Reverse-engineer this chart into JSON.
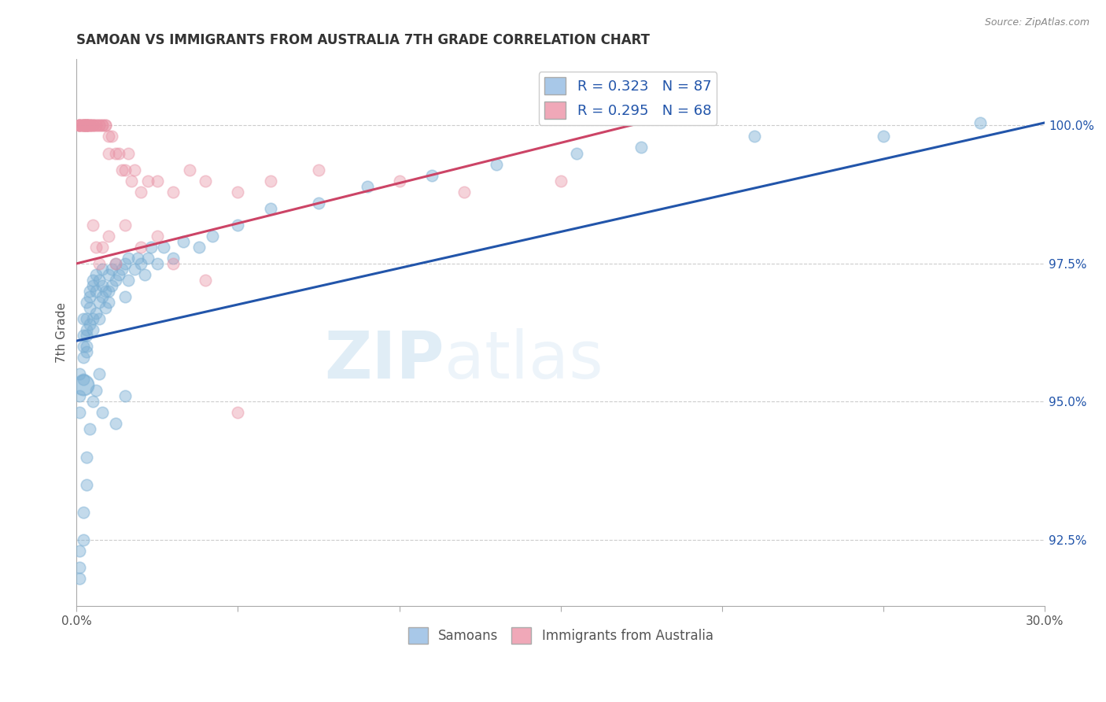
{
  "title": "SAMOAN VS IMMIGRANTS FROM AUSTRALIA 7TH GRADE CORRELATION CHART",
  "source": "Source: ZipAtlas.com",
  "ylabel": "7th Grade",
  "yticks": [
    92.5,
    95.0,
    97.5,
    100.0
  ],
  "ytick_labels": [
    "92.5%",
    "95.0%",
    "97.5%",
    "100.0%"
  ],
  "xlim": [
    0.0,
    0.3
  ],
  "ylim": [
    91.3,
    101.2
  ],
  "legend1_label": "R = 0.323   N = 87",
  "legend2_label": "R = 0.295   N = 68",
  "legend_color1": "#a8c8e8",
  "legend_color2": "#f0a8b8",
  "watermark": "ZIPatlas",
  "blue_color": "#7bafd4",
  "pink_color": "#e891a4",
  "blue_line_color": "#2255aa",
  "pink_line_color": "#cc4466",
  "blue_line_x0": 0.0,
  "blue_line_y0": 96.1,
  "blue_line_x1": 0.3,
  "blue_line_y1": 100.05,
  "pink_line_x0": 0.0,
  "pink_line_y0": 97.5,
  "pink_line_x1": 0.175,
  "pink_line_y1": 100.05,
  "samoans_x": [
    0.001,
    0.001,
    0.001,
    0.002,
    0.002,
    0.002,
    0.002,
    0.002,
    0.003,
    0.003,
    0.003,
    0.003,
    0.003,
    0.003,
    0.004,
    0.004,
    0.004,
    0.004,
    0.005,
    0.005,
    0.005,
    0.005,
    0.006,
    0.006,
    0.006,
    0.007,
    0.007,
    0.007,
    0.008,
    0.008,
    0.008,
    0.009,
    0.009,
    0.01,
    0.01,
    0.01,
    0.011,
    0.011,
    0.012,
    0.012,
    0.013,
    0.014,
    0.015,
    0.015,
    0.016,
    0.016,
    0.018,
    0.019,
    0.02,
    0.021,
    0.022,
    0.023,
    0.025,
    0.027,
    0.03,
    0.033,
    0.038,
    0.042,
    0.05,
    0.06,
    0.075,
    0.09,
    0.11,
    0.13,
    0.155,
    0.175,
    0.21,
    0.25,
    0.28
  ],
  "samoans_y": [
    95.5,
    95.1,
    94.8,
    95.8,
    96.0,
    96.2,
    95.4,
    96.5,
    96.5,
    96.2,
    96.8,
    95.9,
    96.0,
    96.3,
    96.7,
    97.0,
    96.4,
    96.9,
    96.5,
    97.1,
    96.3,
    97.2,
    96.6,
    97.0,
    97.3,
    96.8,
    97.2,
    96.5,
    97.1,
    96.9,
    97.4,
    97.0,
    96.7,
    97.3,
    97.0,
    96.8,
    97.4,
    97.1,
    97.2,
    97.5,
    97.3,
    97.4,
    97.5,
    96.9,
    97.6,
    97.2,
    97.4,
    97.6,
    97.5,
    97.3,
    97.6,
    97.8,
    97.5,
    97.8,
    97.6,
    97.9,
    97.8,
    98.0,
    98.2,
    98.5,
    98.6,
    98.9,
    99.1,
    99.3,
    99.5,
    99.6,
    99.8,
    99.8,
    100.05
  ],
  "samoans_y_low": [
    92.3,
    92.0,
    91.8,
    92.5,
    93.0,
    93.5,
    94.0,
    94.5,
    95.0,
    95.2,
    95.5,
    94.8,
    94.6,
    95.1
  ],
  "samoans_x_low": [
    0.001,
    0.001,
    0.001,
    0.002,
    0.002,
    0.003,
    0.003,
    0.004,
    0.005,
    0.006,
    0.007,
    0.008,
    0.012,
    0.015
  ],
  "australia_x": [
    0.001,
    0.001,
    0.001,
    0.001,
    0.001,
    0.002,
    0.002,
    0.002,
    0.002,
    0.002,
    0.002,
    0.003,
    0.003,
    0.003,
    0.003,
    0.003,
    0.003,
    0.003,
    0.004,
    0.004,
    0.004,
    0.004,
    0.005,
    0.005,
    0.005,
    0.006,
    0.006,
    0.007,
    0.007,
    0.008,
    0.008,
    0.009,
    0.009,
    0.01,
    0.01,
    0.011,
    0.012,
    0.013,
    0.014,
    0.015,
    0.016,
    0.017,
    0.018,
    0.02,
    0.022,
    0.025,
    0.03,
    0.035,
    0.04,
    0.05,
    0.06,
    0.075,
    0.1,
    0.12,
    0.15,
    0.005,
    0.006,
    0.007,
    0.008,
    0.01,
    0.012,
    0.015,
    0.02,
    0.025,
    0.03,
    0.04,
    0.05
  ],
  "australia_y": [
    100.0,
    100.0,
    100.0,
    100.0,
    100.0,
    100.0,
    100.0,
    100.0,
    100.0,
    100.0,
    100.0,
    100.0,
    100.0,
    100.0,
    100.0,
    100.0,
    100.0,
    100.0,
    100.0,
    100.0,
    100.0,
    100.0,
    100.0,
    100.0,
    100.0,
    100.0,
    100.0,
    100.0,
    100.0,
    100.0,
    100.0,
    100.0,
    100.0,
    99.8,
    99.5,
    99.8,
    99.5,
    99.5,
    99.2,
    99.2,
    99.5,
    99.0,
    99.2,
    98.8,
    99.0,
    99.0,
    98.8,
    99.2,
    99.0,
    98.8,
    99.0,
    99.2,
    99.0,
    98.8,
    99.0,
    98.2,
    97.8,
    97.5,
    97.8,
    98.0,
    97.5,
    98.2,
    97.8,
    98.0,
    97.5,
    97.2,
    94.8
  ]
}
